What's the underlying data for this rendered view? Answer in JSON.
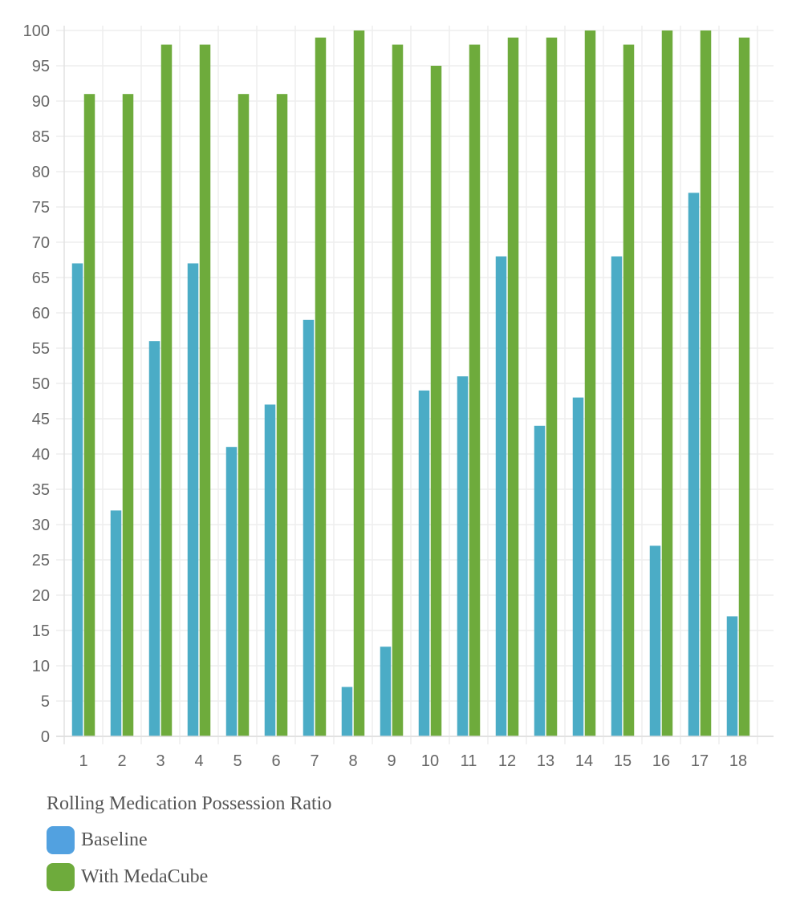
{
  "chart_data": {
    "type": "bar",
    "title": "",
    "xlabel": "",
    "ylabel": "",
    "categories": [
      "1",
      "2",
      "3",
      "4",
      "5",
      "6",
      "7",
      "8",
      "9",
      "10",
      "11",
      "12",
      "13",
      "14",
      "15",
      "16",
      "17",
      "18"
    ],
    "series": [
      {
        "name": "Baseline",
        "color": "#4BACC6",
        "legend_color": "#52A1E0",
        "values": [
          67,
          32,
          56,
          67,
          41,
          47,
          59,
          7,
          12.7,
          49,
          51,
          68,
          44,
          48,
          68,
          27,
          77,
          17
        ]
      },
      {
        "name": "With MedaCube",
        "color": "#6EAB3C",
        "legend_color": "#6EAB3C",
        "values": [
          91,
          91,
          98,
          98,
          91,
          91,
          99,
          100,
          98,
          95,
          98,
          99,
          99,
          100,
          98,
          100,
          100,
          99
        ]
      }
    ],
    "ylim": [
      0,
      100
    ],
    "yticks": [
      0,
      5,
      10,
      15,
      20,
      25,
      30,
      35,
      40,
      45,
      50,
      55,
      60,
      65,
      70,
      75,
      80,
      85,
      90,
      95,
      100
    ],
    "grid": true,
    "legend": {
      "title": "Rolling Medication Possession Ratio",
      "position": "bottom-left"
    }
  }
}
